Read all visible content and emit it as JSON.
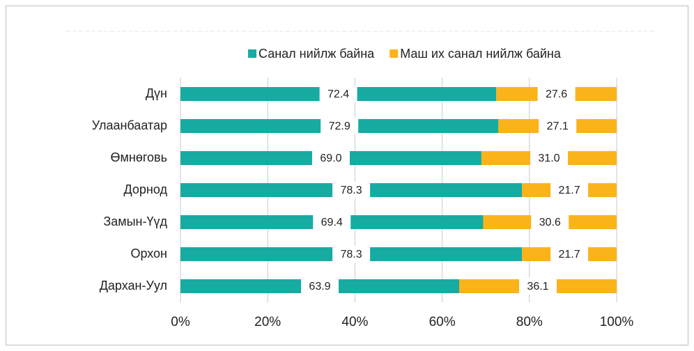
{
  "chart_data": {
    "type": "bar",
    "orientation": "horizontal",
    "stacked": true,
    "categories": [
      "Дүн",
      "Улаанбаатар",
      "Өмнөговь",
      "Дорнод",
      "Замын-Үүд",
      "Орхон",
      "Дархан-Уул"
    ],
    "series": [
      {
        "name": "Санал нийлж байна",
        "color": "#17aba2",
        "values": [
          72.4,
          72.9,
          69.0,
          78.3,
          69.4,
          78.3,
          63.9
        ],
        "value_labels": [
          "72.4",
          "72.9",
          "69.0",
          "78.3",
          "69.4",
          "78.3",
          "63.9"
        ]
      },
      {
        "name": "Маш их санал нийлж байна",
        "color": "#fbb31a",
        "values": [
          27.6,
          27.1,
          31.0,
          21.7,
          30.6,
          21.7,
          36.1
        ],
        "value_labels": [
          "27.6",
          "27.1",
          "31.0",
          "21.7",
          "30.6",
          "21.7",
          "36.1"
        ]
      }
    ],
    "xlim": [
      0,
      100
    ],
    "xticks": [
      {
        "value": 0,
        "label": "0%"
      },
      {
        "value": 20,
        "label": "20%"
      },
      {
        "value": 40,
        "label": "40%"
      },
      {
        "value": 60,
        "label": "60%"
      },
      {
        "value": 80,
        "label": "80%"
      },
      {
        "value": 100,
        "label": "100%"
      }
    ],
    "grid": true,
    "legend": "top"
  }
}
